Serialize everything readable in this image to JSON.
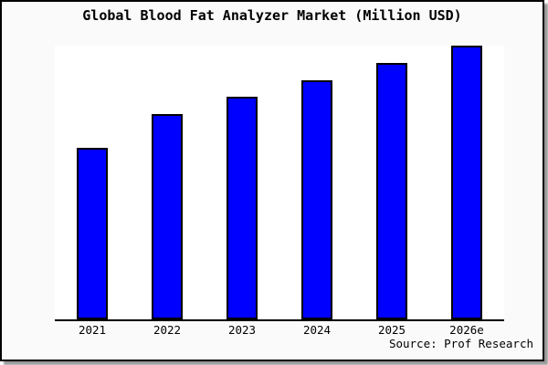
{
  "chart_data": {
    "type": "bar",
    "title": "Global Blood Fat Analyzer Market (Million USD)",
    "categories": [
      "2021",
      "2022",
      "2023",
      "2024",
      "2025",
      "2026e"
    ],
    "values": [
      189,
      226,
      245,
      263,
      282,
      301
    ],
    "xlabel": "",
    "ylabel": "",
    "ylim": [
      0,
      301
    ],
    "grid": false,
    "legend": null,
    "bar_color": "#0000ff",
    "bar_border_color": "#000000",
    "axis_color": "#000000",
    "plot_background": "#ffffff",
    "canvas_background": "#fafafa"
  },
  "source": {
    "text": "Source: Prof Research"
  }
}
